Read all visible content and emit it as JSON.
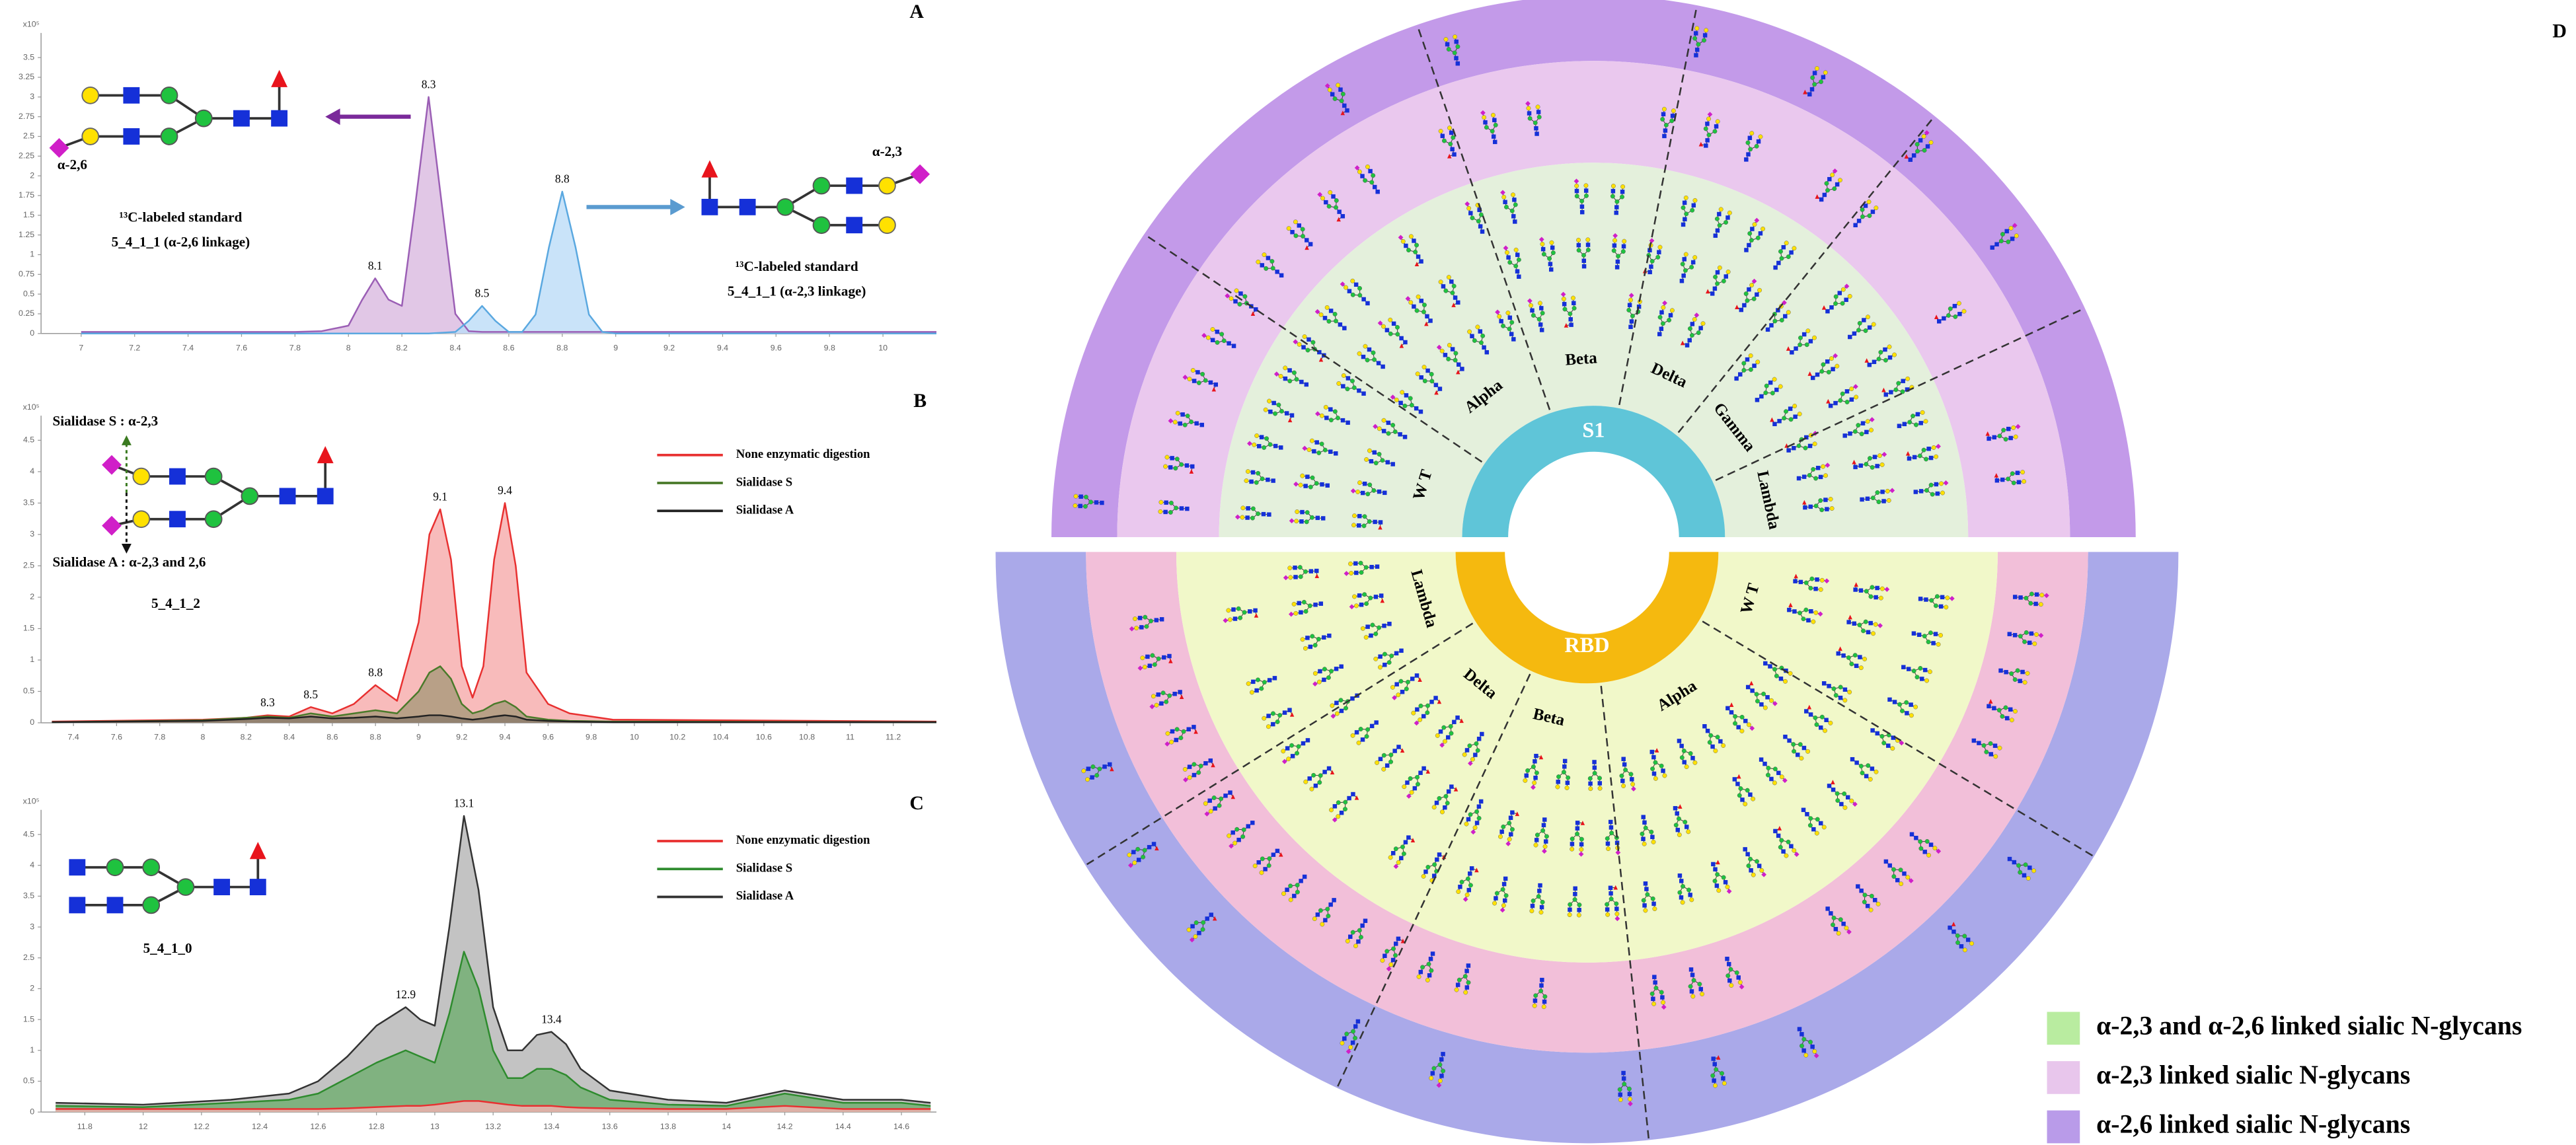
{
  "chart_data": [
    {
      "type": "line",
      "panel": "A",
      "ylabel": "x10⁵",
      "x": [
        7,
        7.5,
        7.8,
        7.9,
        8.0,
        8.05,
        8.1,
        8.15,
        8.2,
        8.25,
        8.3,
        8.35,
        8.4,
        8.45,
        8.5,
        8.55,
        8.6,
        8.65,
        8.7,
        8.75,
        8.8,
        8.85,
        8.9,
        8.95,
        9.0,
        9.1,
        9.3,
        9.6,
        10.2
      ],
      "series": [
        {
          "color": "#9b5fb5",
          "fill": "#d9b9e0",
          "values": [
            0.02,
            0.02,
            0.02,
            0.03,
            0.1,
            0.42,
            0.7,
            0.43,
            0.35,
            1.63,
            3.0,
            1.62,
            0.25,
            0.03,
            0.02,
            0.02,
            0.02,
            0.02,
            0.02,
            0.02,
            0.02,
            0.02,
            0.02,
            0.02,
            0.02,
            0.02,
            0.02,
            0.02,
            0.02
          ]
        },
        {
          "color": "#5aa8e0",
          "fill": "#bcdcf7",
          "values": [
            0,
            0,
            0,
            0,
            0,
            0,
            0,
            0,
            0,
            0,
            0,
            0.01,
            0.02,
            0.16,
            0.35,
            0.16,
            0.02,
            0.02,
            0.24,
            1.09,
            1.8,
            1.09,
            0.24,
            0.02,
            0,
            0,
            0,
            0,
            0
          ]
        }
      ],
      "peak_labels": [
        8.1,
        8.3,
        8.5,
        8.8
      ],
      "annotations": [
        "¹³C-labeled standard",
        "5_4_1_1 (α-2,6 linkage)",
        "α-2,6",
        "¹³C-labeled standard",
        "5_4_1_1 (α-2,3 linkage)",
        "α-2,3"
      ],
      "xlim": [
        6.85,
        10.2
      ],
      "xticks": [
        7,
        7.2,
        7.4,
        7.6,
        7.8,
        8,
        8.2,
        8.4,
        8.6,
        8.8,
        9,
        9.2,
        9.4,
        9.6,
        9.8,
        10
      ],
      "ylim": [
        0,
        3.5
      ],
      "yticks": [
        0,
        0.25,
        0.5,
        0.75,
        1,
        1.25,
        1.5,
        1.75,
        2,
        2.25,
        2.5,
        2.75,
        3,
        3.25,
        3.5
      ]
    },
    {
      "type": "line",
      "panel": "B",
      "ylabel": "x10⁵",
      "x": [
        7.3,
        8.0,
        8.2,
        8.3,
        8.4,
        8.5,
        8.6,
        8.7,
        8.8,
        8.9,
        9.0,
        9.05,
        9.1,
        9.15,
        9.2,
        9.25,
        9.3,
        9.35,
        9.4,
        9.45,
        9.5,
        9.6,
        9.7,
        9.9,
        11.4
      ],
      "series": [
        {
          "name": "None enzymatic digestion",
          "color": "#e83030",
          "fill": "#f6aaaa",
          "values": [
            0.02,
            0.05,
            0.08,
            0.12,
            0.1,
            0.25,
            0.15,
            0.3,
            0.6,
            0.35,
            1.6,
            3.0,
            3.4,
            2.6,
            0.9,
            0.4,
            0.9,
            2.6,
            3.5,
            2.5,
            0.8,
            0.3,
            0.15,
            0.05,
            0.02
          ]
        },
        {
          "name": "Sialidase S",
          "color": "#4a7a2a",
          "fill": "#a89a7a",
          "values": [
            0.01,
            0.04,
            0.08,
            0.1,
            0.08,
            0.15,
            0.1,
            0.15,
            0.2,
            0.15,
            0.5,
            0.8,
            0.9,
            0.7,
            0.3,
            0.15,
            0.2,
            0.3,
            0.35,
            0.25,
            0.1,
            0.05,
            0.03,
            0.02,
            0.01
          ]
        },
        {
          "name": "Sialidase A",
          "color": "#222222",
          "fill": "#8a7a6a",
          "values": [
            0.01,
            0.03,
            0.06,
            0.08,
            0.07,
            0.1,
            0.07,
            0.08,
            0.1,
            0.07,
            0.1,
            0.12,
            0.12,
            0.1,
            0.07,
            0.05,
            0.07,
            0.1,
            0.12,
            0.1,
            0.05,
            0.03,
            0.02,
            0.01,
            0.01
          ]
        }
      ],
      "peak_labels": [
        8.3,
        8.5,
        8.8,
        9.1,
        9.4
      ],
      "annotations": [
        "Sialidase S : α-2,3",
        "Sialidase A : α-2,3 and 2,6",
        "5_4_1_2"
      ],
      "xlim": [
        7.25,
        11.4
      ],
      "xticks": [
        7.4,
        7.6,
        7.8,
        8,
        8.2,
        8.4,
        8.6,
        8.8,
        9,
        9.2,
        9.4,
        9.6,
        9.8,
        10,
        10.2,
        10.4,
        10.6,
        10.8,
        11,
        11.2
      ],
      "ylim": [
        0,
        4.5
      ],
      "yticks": [
        0,
        0.5,
        1,
        1.5,
        2,
        2.5,
        3,
        3.5,
        4,
        4.5
      ]
    },
    {
      "type": "line",
      "panel": "C",
      "ylabel": "x10⁵",
      "x": [
        11.7,
        12.0,
        12.3,
        12.5,
        12.6,
        12.7,
        12.8,
        12.9,
        12.95,
        13.0,
        13.05,
        13.1,
        13.15,
        13.2,
        13.25,
        13.3,
        13.35,
        13.4,
        13.45,
        13.5,
        13.6,
        13.8,
        14.0,
        14.2,
        14.4,
        14.6,
        14.7
      ],
      "series": [
        {
          "name": "None enzymatic digestion",
          "color": "#e83030",
          "fill": "#f4b0b0",
          "values": [
            0.05,
            0.05,
            0.05,
            0.05,
            0.05,
            0.06,
            0.08,
            0.1,
            0.1,
            0.12,
            0.15,
            0.18,
            0.18,
            0.15,
            0.12,
            0.1,
            0.1,
            0.1,
            0.08,
            0.07,
            0.06,
            0.05,
            0.05,
            0.1,
            0.05,
            0.05,
            0.05
          ]
        },
        {
          "name": "Sialidase S",
          "color": "#2e8b2e",
          "fill": "#6fae6f",
          "values": [
            0.1,
            0.08,
            0.15,
            0.2,
            0.3,
            0.55,
            0.8,
            1.0,
            0.9,
            0.8,
            1.6,
            2.6,
            2.0,
            1.0,
            0.55,
            0.55,
            0.7,
            0.7,
            0.6,
            0.4,
            0.2,
            0.12,
            0.1,
            0.3,
            0.15,
            0.15,
            0.1
          ]
        },
        {
          "name": "Sialidase A",
          "color": "#333333",
          "fill": "#b4b4b4",
          "values": [
            0.15,
            0.12,
            0.2,
            0.3,
            0.5,
            0.9,
            1.4,
            1.7,
            1.5,
            1.4,
            3.0,
            4.8,
            3.6,
            1.7,
            1.0,
            1.0,
            1.25,
            1.3,
            1.1,
            0.7,
            0.35,
            0.2,
            0.15,
            0.35,
            0.2,
            0.2,
            0.15
          ]
        }
      ],
      "peak_labels": [
        12.9,
        13.1,
        13.4
      ],
      "annotations": [
        "5_4_1_0"
      ],
      "xlim": [
        11.65,
        14.72
      ],
      "xticks": [
        11.8,
        12,
        12.2,
        12.4,
        12.6,
        12.8,
        13,
        13.2,
        13.4,
        13.6,
        13.8,
        14,
        14.2,
        14.4,
        14.6
      ],
      "ylim": [
        0,
        4.5
      ],
      "yticks": [
        0,
        0.5,
        1,
        1.5,
        2,
        2.5,
        3,
        3.5,
        4,
        4.5
      ]
    }
  ],
  "diagram": {
    "panel": "D",
    "top": {
      "center": "S1",
      "sectors": [
        "W T",
        "Alpha",
        "Beta",
        "Delta",
        "Gamma",
        "Lambda"
      ]
    },
    "bottom": {
      "center": "RBD",
      "sectors": [
        "Lambda",
        "Delta",
        "Beta",
        "Alpha",
        "W T"
      ]
    },
    "legend": [
      {
        "label": "α-2,3 and α-2,6 linked sialic N-glycans",
        "color": "#b9eca0"
      },
      {
        "label": "α-2,3 linked sialic N-glycans",
        "color": "#e8c6ec"
      },
      {
        "label": "α-2,6 linked sialic N-glycans",
        "color": "#b99be9"
      }
    ]
  }
}
